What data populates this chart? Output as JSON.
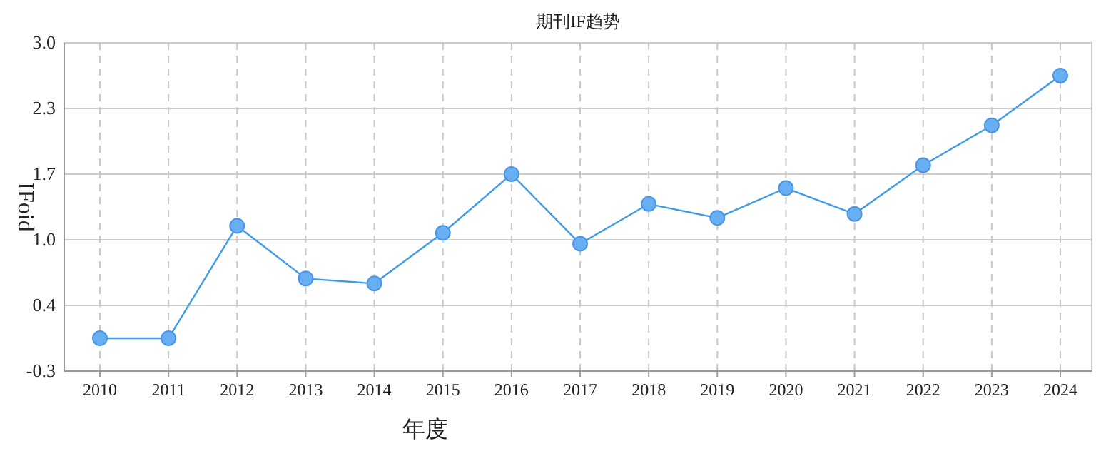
{
  "chart_data": {
    "type": "line",
    "title": "期刊IF趋势",
    "xlabel": "年度",
    "ylabel": "IFoid",
    "categories": [
      "2010",
      "2011",
      "2012",
      "2013",
      "2014",
      "2015",
      "2016",
      "2017",
      "2018",
      "2019",
      "2020",
      "2021",
      "2022",
      "2023",
      "2024"
    ],
    "series": [
      {
        "color": "#3d9be9",
        "values": [
          0.03,
          0.03,
          1.16,
          0.63,
          0.58,
          1.09,
          1.68,
          0.98,
          1.38,
          1.24,
          1.54,
          1.28,
          1.77,
          2.17,
          2.67
        ]
      }
    ],
    "ylim": [
      -0.3,
      3.0
    ],
    "yticks": [
      -0.3,
      {
        "value": 0.36,
        "label": "0.4"
      },
      {
        "value": 1.02,
        "label": "1.0"
      },
      {
        "value": 1.68,
        "label": "1.7"
      },
      {
        "value": 2.34,
        "label": "2.3"
      },
      {
        "value": 3.0,
        "label": "3.0"
      }
    ],
    "grid": true,
    "marker": "circle",
    "line_style": "solid"
  }
}
